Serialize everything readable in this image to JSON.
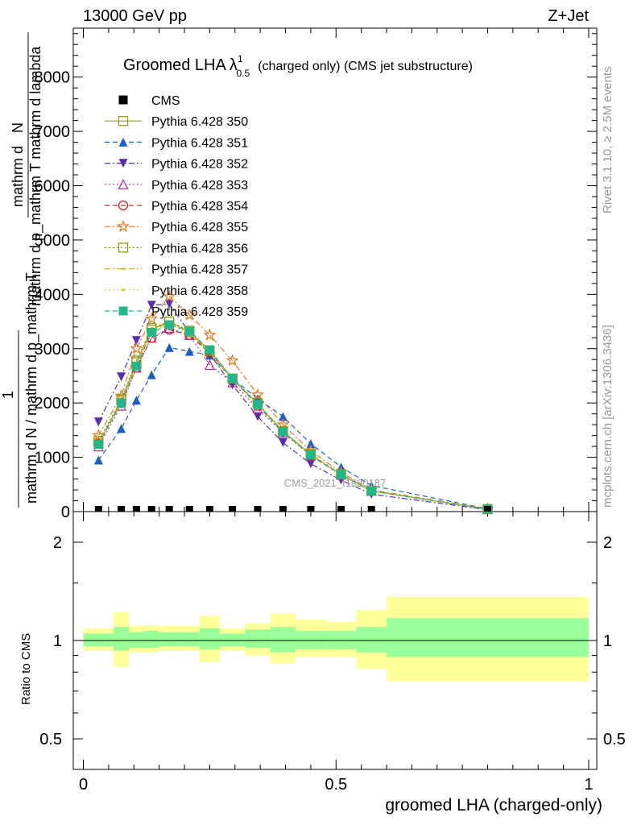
{
  "header": {
    "left": "13000 GeV pp",
    "right": "Z+Jet"
  },
  "side_labels": {
    "rivet": "Rivet 3.1.10, ≥ 2.5M events",
    "mcplots": "mcplots.cern.ch [arXiv:1306.3436]"
  },
  "watermark": "CMS_2021_I1920187",
  "chart_data": [
    {
      "type": "line",
      "title_main": "Groomed LHA",
      "title_lambda": "λ",
      "title_sup": "1",
      "title_sub": "0.5",
      "title_rest": "(charged only) (CMS jet substructure)",
      "ylabel_num_1": "mathrm d",
      "ylabel_num_2": "N",
      "ylabel_den": "mathrm d p_mathrm T mathrm d lambda",
      "ylabel_bottom_1": "1",
      "ylabel_bottom_2": "mathrm d N / mathrm d p_mathrm T",
      "yticks": [
        "0",
        "1000",
        "2000",
        "3000",
        "4000",
        "5000",
        "6000",
        "7000",
        "8000"
      ],
      "ylim": [
        0,
        8900
      ],
      "xlim": [
        -0.02,
        1.0
      ],
      "grid": false,
      "legend_position": "top-left",
      "x": [
        0.03,
        0.075,
        0.105,
        0.135,
        0.17,
        0.21,
        0.25,
        0.295,
        0.345,
        0.395,
        0.45,
        0.51,
        0.57,
        0.8
      ],
      "cms": [
        0,
        0,
        0,
        0,
        0,
        0,
        0,
        0,
        0,
        0,
        0,
        0,
        0,
        0
      ],
      "series": [
        {
          "name": "CMS",
          "color": "#000000",
          "marker": "square-filled",
          "dash": "none"
        },
        {
          "name": "Pythia 6.428 350",
          "color": "#9a9a2e",
          "marker": "square-open",
          "dash": "solid",
          "values": [
            1250,
            2050,
            2750,
            3350,
            3500,
            3300,
            2950,
            2450,
            1980,
            1480,
            1050,
            680,
            380,
            45
          ]
        },
        {
          "name": "Pythia 6.428 351",
          "color": "#1a5ec8",
          "marker": "triangle-up-filled",
          "dash": "dashed",
          "values": [
            950,
            1530,
            2050,
            2520,
            3020,
            2950,
            2880,
            2450,
            2080,
            1750,
            1250,
            820,
            480,
            50
          ]
        },
        {
          "name": "Pythia 6.428 352",
          "color": "#5a2db0",
          "marker": "triangle-down-filled",
          "dash": "dashdot",
          "values": [
            1650,
            2480,
            3150,
            3800,
            3820,
            3300,
            2900,
            2330,
            1750,
            1270,
            880,
            580,
            320,
            35
          ]
        },
        {
          "name": "Pythia 6.428 353",
          "color": "#b0389a",
          "marker": "triangle-up-open",
          "dash": "dotted",
          "values": [
            1200,
            1950,
            2650,
            3200,
            3380,
            3250,
            2700,
            2380,
            1900,
            1450,
            1030,
            680,
            380,
            45
          ]
        },
        {
          "name": "Pythia 6.428 354",
          "color": "#d0202a",
          "marker": "circle-open",
          "dash": "dashed",
          "values": [
            1250,
            2000,
            2650,
            3200,
            3350,
            3250,
            2920,
            2450,
            1950,
            1470,
            1030,
            680,
            380,
            45
          ]
        },
        {
          "name": "Pythia 6.428 355",
          "color": "#e8781e",
          "marker": "star-open",
          "dash": "dashdot",
          "values": [
            1400,
            2130,
            3000,
            3550,
            3960,
            3620,
            3250,
            2780,
            2150,
            1600,
            1120,
            720,
            400,
            50
          ]
        },
        {
          "name": "Pythia 6.428 356",
          "color": "#8a9a10",
          "marker": "square-open",
          "dash": "dotted",
          "values": [
            1300,
            2070,
            2780,
            3380,
            3500,
            3330,
            2960,
            2450,
            2000,
            1480,
            1060,
            690,
            385,
            45
          ]
        },
        {
          "name": "Pythia 6.428 357",
          "color": "#d8b818",
          "marker": "dash",
          "dash": "dashdot",
          "values": [
            1270,
            2030,
            2730,
            3330,
            3480,
            3300,
            2940,
            2440,
            1980,
            1470,
            1050,
            680,
            380,
            45
          ]
        },
        {
          "name": "Pythia 6.428 358",
          "color": "#b8d818",
          "marker": "dot",
          "dash": "dotted",
          "values": [
            1260,
            2010,
            2700,
            3300,
            3460,
            3280,
            2930,
            2430,
            1970,
            1460,
            1040,
            680,
            380,
            45
          ]
        },
        {
          "name": "Pythia 6.428 359",
          "color": "#20b88a",
          "marker": "square-filled",
          "dash": "dashed",
          "values": [
            1240,
            2000,
            2680,
            3300,
            3440,
            3320,
            2980,
            2450,
            1970,
            1470,
            1040,
            680,
            380,
            45
          ]
        }
      ]
    },
    {
      "type": "area",
      "ylabel": "Ratio to CMS",
      "xlabel": "groomed LHA (charged-only)",
      "xticks": [
        "0",
        "0.5",
        "1"
      ],
      "yticks": [
        "0.5",
        "1",
        "2"
      ],
      "ylim": [
        0.4,
        2.3
      ],
      "yscale": "log",
      "grid": false,
      "colors": {
        "inner": "#99ff99",
        "outer": "#ffff99"
      },
      "bands": [
        {
          "x0": 0.0,
          "x1": 0.06,
          "inner": [
            0.96,
            1.05
          ],
          "outer": [
            0.93,
            1.09
          ]
        },
        {
          "x0": 0.06,
          "x1": 0.09,
          "inner": [
            0.93,
            1.1
          ],
          "outer": [
            0.83,
            1.22
          ]
        },
        {
          "x0": 0.09,
          "x1": 0.12,
          "inner": [
            0.95,
            1.06
          ],
          "outer": [
            0.92,
            1.11
          ]
        },
        {
          "x0": 0.12,
          "x1": 0.15,
          "inner": [
            0.95,
            1.07
          ],
          "outer": [
            0.92,
            1.11
          ]
        },
        {
          "x0": 0.15,
          "x1": 0.19,
          "inner": [
            0.96,
            1.06
          ],
          "outer": [
            0.93,
            1.11
          ]
        },
        {
          "x0": 0.19,
          "x1": 0.23,
          "inner": [
            0.96,
            1.06
          ],
          "outer": [
            0.93,
            1.11
          ]
        },
        {
          "x0": 0.23,
          "x1": 0.27,
          "inner": [
            0.94,
            1.09
          ],
          "outer": [
            0.86,
            1.19
          ]
        },
        {
          "x0": 0.27,
          "x1": 0.32,
          "inner": [
            0.96,
            1.05
          ],
          "outer": [
            0.93,
            1.09
          ]
        },
        {
          "x0": 0.32,
          "x1": 0.37,
          "inner": [
            0.95,
            1.08
          ],
          "outer": [
            0.9,
            1.13
          ]
        },
        {
          "x0": 0.37,
          "x1": 0.42,
          "inner": [
            0.92,
            1.1
          ],
          "outer": [
            0.85,
            1.21
          ]
        },
        {
          "x0": 0.42,
          "x1": 0.48,
          "inner": [
            0.94,
            1.07
          ],
          "outer": [
            0.89,
            1.16
          ]
        },
        {
          "x0": 0.48,
          "x1": 0.54,
          "inner": [
            0.94,
            1.07
          ],
          "outer": [
            0.89,
            1.14
          ]
        },
        {
          "x0": 0.54,
          "x1": 0.6,
          "inner": [
            0.92,
            1.1
          ],
          "outer": [
            0.82,
            1.24
          ]
        },
        {
          "x0": 0.6,
          "x1": 1.0,
          "inner": [
            0.89,
            1.17
          ],
          "outer": [
            0.75,
            1.36
          ]
        }
      ]
    }
  ]
}
